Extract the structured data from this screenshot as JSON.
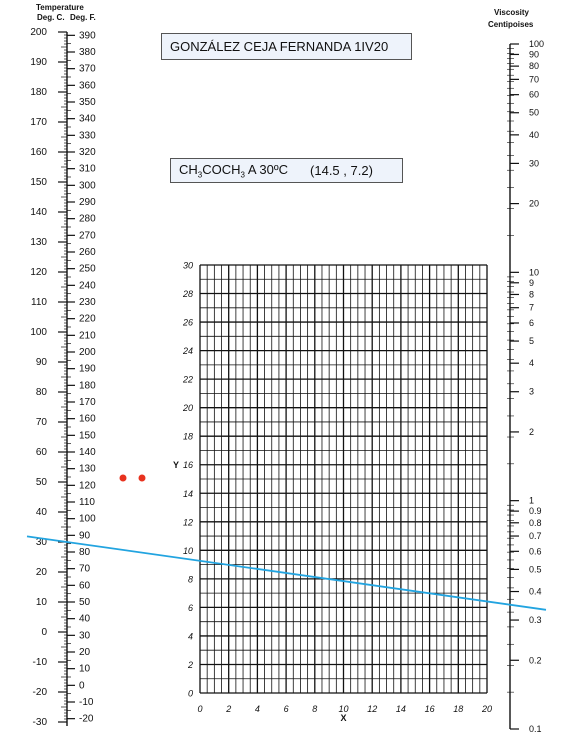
{
  "labels": {
    "temp_title": "Temperature",
    "temp_deg_c": "Deg. C.",
    "temp_deg_f": "Deg. F.",
    "visc_title": "Viscosity",
    "visc_unit": "Centipoises",
    "name_box": "GONZÁLEZ CEJA FERNANDA 1IV20",
    "compound_prefix": "CH",
    "compound_sub1": "3",
    "compound_mid": "COCH",
    "compound_sub2": "3",
    "compound_suffix": " A 30ºC",
    "compound_coords": "(14.5 , 7.2)"
  },
  "colors": {
    "line": "#22a4e0",
    "points": "#e8321e",
    "axis": "#111111",
    "box_fill": "#eef3fb"
  },
  "chart_data": {
    "type": "nomograph",
    "celsius_scale": {
      "min": -30,
      "max": 200,
      "ticks": [
        -30,
        -20,
        -10,
        0,
        10,
        20,
        30,
        40,
        50,
        60,
        70,
        80,
        90,
        100,
        110,
        120,
        130,
        140,
        150,
        160,
        170,
        180,
        190,
        200
      ],
      "tick_labels": [
        "-30",
        "-20",
        "-10",
        "0",
        "10",
        "20",
        "30",
        "40",
        "50",
        "60",
        "70",
        "80",
        "90",
        "100",
        "110",
        "120",
        "130",
        "140",
        "150",
        "160",
        "170",
        "180",
        "190",
        "200"
      ]
    },
    "fahrenheit_scale": {
      "ticks": [
        -20,
        -10,
        0,
        10,
        20,
        30,
        40,
        50,
        60,
        70,
        80,
        90,
        100,
        110,
        120,
        130,
        140,
        150,
        160,
        170,
        180,
        190,
        200,
        210,
        220,
        230,
        240,
        250,
        260,
        270,
        280,
        290,
        300,
        310,
        320,
        330,
        340,
        350,
        360,
        370,
        380,
        390
      ],
      "tick_labels": [
        "-20",
        "-10",
        "0",
        "10",
        "20",
        "30",
        "40",
        "50",
        "60",
        "70",
        "80",
        "90",
        "100",
        "110",
        "120",
        "130",
        "140",
        "150",
        "160",
        "170",
        "180",
        "190",
        "200",
        "210",
        "220",
        "230",
        "240",
        "250",
        "260",
        "270",
        "280",
        "290",
        "300",
        "310",
        "320",
        "330",
        "340",
        "350",
        "360",
        "370",
        "380",
        "390"
      ]
    },
    "grid": {
      "x_range": [
        0,
        20
      ],
      "y_range": [
        0,
        30
      ],
      "x_label": "X",
      "y_label": "Y",
      "x_tick_labels": [
        "0",
        "2",
        "4",
        "6",
        "8",
        "10",
        "12",
        "14",
        "16",
        "18",
        "20"
      ],
      "y_tick_labels": [
        "0",
        "2",
        "4",
        "6",
        "8",
        "10",
        "12",
        "14",
        "16",
        "18",
        "20",
        "22",
        "24",
        "26",
        "28",
        "30"
      ]
    },
    "viscosity_scale": {
      "min": 0.1,
      "max": 100,
      "log": true,
      "tick_labels": [
        "100",
        "90",
        "80",
        "70",
        "60",
        "50",
        "40",
        "30",
        "20",
        "10",
        "9",
        "8",
        "7",
        "6",
        "5",
        "4",
        "3",
        "2",
        "1",
        "0.9",
        "0.8",
        "0.7",
        "0.6",
        "0.5",
        "0.4",
        "0.3",
        "0.2",
        "0.1"
      ]
    },
    "point": {
      "x": 14.5,
      "y": 7.2
    },
    "temperature_c": 30,
    "markers_count": 2,
    "result_viscosity": 0.3
  }
}
